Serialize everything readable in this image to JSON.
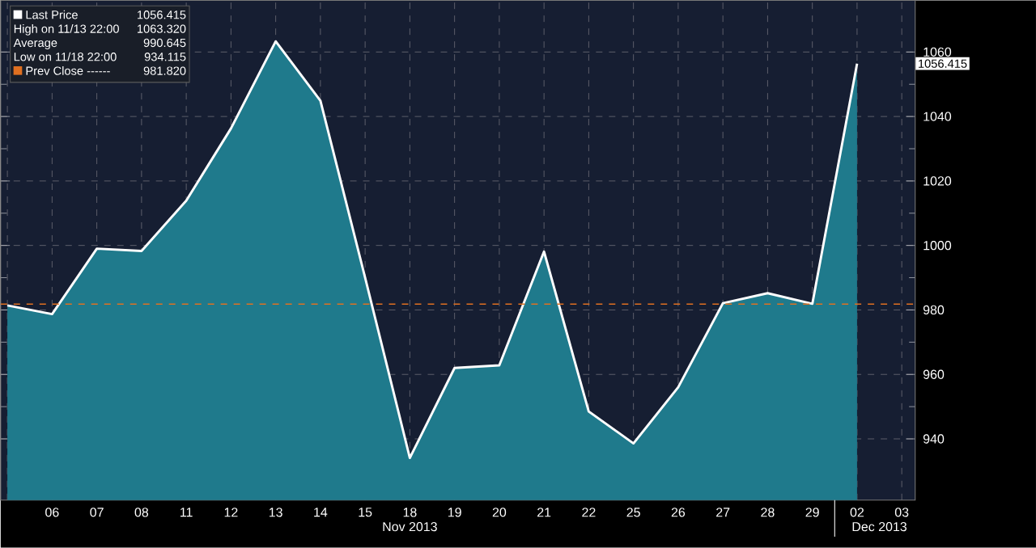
{
  "chart_data": {
    "type": "area",
    "categories": [
      null,
      "06",
      "07",
      "08",
      "11",
      "12",
      "13",
      "14",
      "15",
      "18",
      "19",
      "20",
      "21",
      "22",
      "25",
      "26",
      "27",
      "28",
      "29",
      "02",
      "03"
    ],
    "series": [
      {
        "name": "Last Price",
        "color": "#1f7a8c",
        "values": [
          981.4,
          978.7,
          999.0,
          998.3,
          1013.9,
          1036.3,
          1063.3,
          1044.9,
          990.0,
          934.1,
          962.0,
          962.8,
          998.1,
          948.5,
          938.6,
          956.0,
          982.1,
          985.2,
          981.9,
          1056.4,
          null
        ]
      }
    ],
    "ylim": [
      921,
      1076
    ],
    "yticks": [
      940,
      960,
      980,
      1000,
      1020,
      1040,
      1060
    ],
    "grid": true,
    "legend": "top left",
    "ref_lines": [
      {
        "axis": "y",
        "value": 981.82,
        "label": "Prev Close ------",
        "color": "#e07020",
        "line_style": "dashed"
      }
    ],
    "annotations": [
      "1056.415",
      "High on 11/13 22:00",
      "1063.320",
      "Average",
      "990.645",
      "Low on 11/18 22:00",
      "934.115",
      "981.820",
      "Nov 2013",
      "Dec 2013",
      "1056.415"
    ]
  }
}
